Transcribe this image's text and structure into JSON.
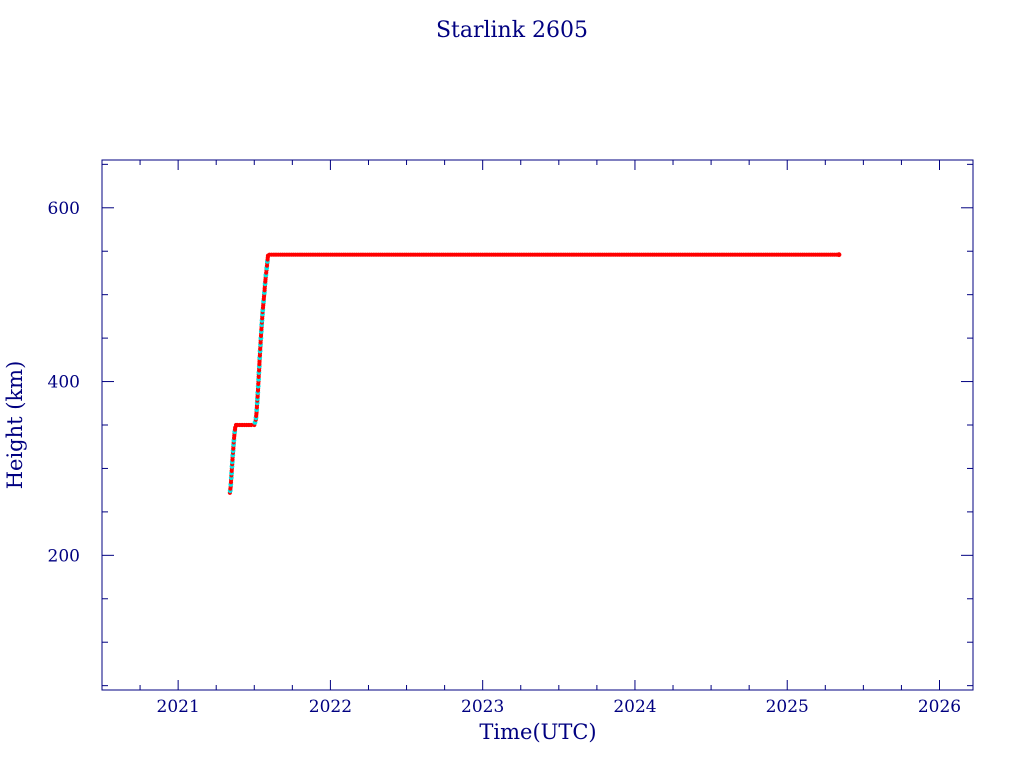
{
  "chart_data": {
    "type": "scatter",
    "title": "Starlink 2605",
    "xlabel": "Time(UTC)",
    "ylabel": "Height (km)",
    "xlim": [
      2020.5,
      2026.22
    ],
    "ylim": [
      45,
      655
    ],
    "xticks": [
      2021,
      2022,
      2023,
      2024,
      2025,
      2026
    ],
    "yticks": [
      200,
      400,
      600
    ],
    "grid": false,
    "colors": {
      "frame": "#000080",
      "points": "#ff0000",
      "points_light": "#00e5e5",
      "line": "#000000"
    },
    "series": [
      {
        "x": [
          2021.34,
          2021.345,
          2021.35,
          2021.355,
          2021.36,
          2021.365,
          2021.37,
          2021.375,
          2021.38,
          2021.39,
          2021.42,
          2021.45,
          2021.48,
          2021.5,
          2021.51,
          2021.515,
          2021.52,
          2021.525,
          2021.53,
          2021.535,
          2021.54,
          2021.545,
          2021.55,
          2021.555,
          2021.56,
          2021.565,
          2021.57,
          2021.575,
          2021.58,
          2021.585,
          2021.59,
          2021.6,
          2021.7,
          2021.8,
          2022.0,
          2022.2,
          2022.5,
          2022.8,
          2023.0,
          2023.3,
          2023.6,
          2024.0,
          2024.3,
          2024.6,
          2025.0,
          2025.2,
          2025.34
        ],
        "y": [
          272,
          279,
          292,
          305,
          318,
          330,
          340,
          347,
          350,
          350,
          350,
          350,
          350,
          350,
          356,
          365,
          378,
          392,
          408,
          425,
          440,
          455,
          468,
          480,
          490,
          500,
          510,
          520,
          528,
          536,
          545,
          546,
          546,
          546,
          546,
          546,
          546,
          546,
          546,
          546,
          546,
          546,
          546,
          546,
          546,
          546,
          546
        ]
      }
    ]
  }
}
